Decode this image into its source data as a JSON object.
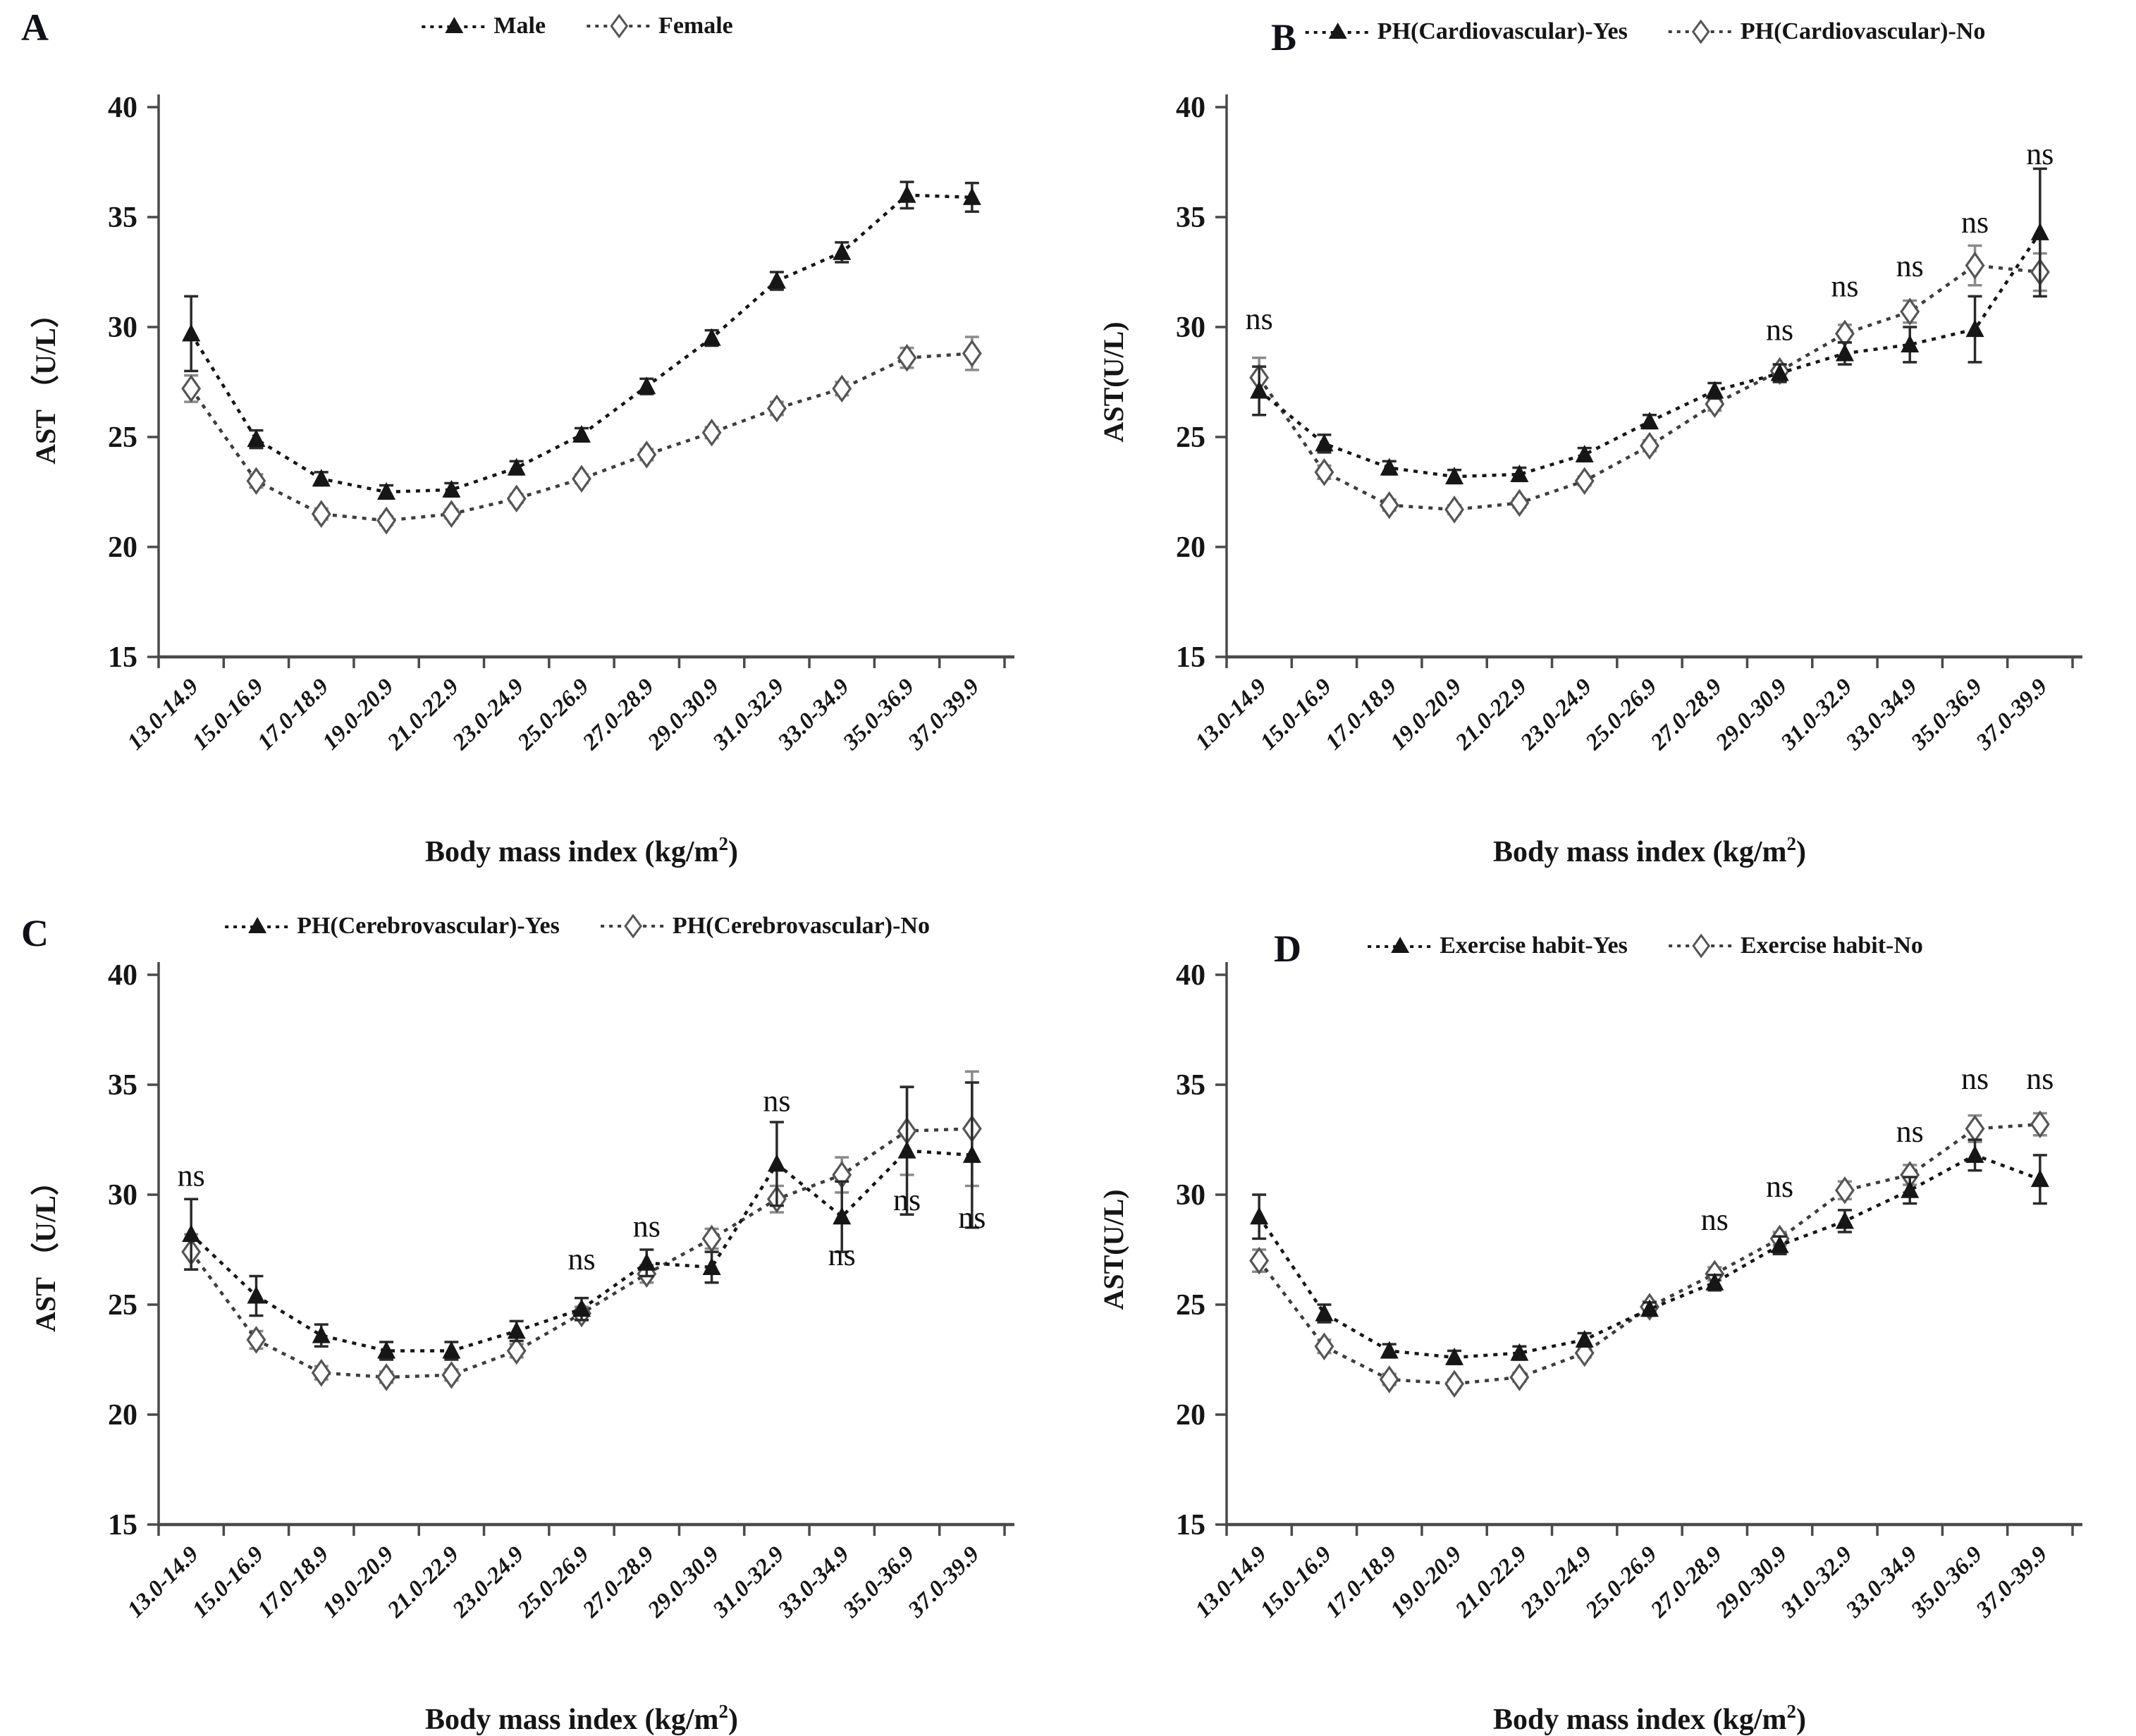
{
  "figure": {
    "background": "#ffffff",
    "text_color": "#111111",
    "accent_black": "#161616",
    "accent_gray": "#6e6e6e",
    "ns_label": "ns",
    "x_tick_labels": [
      "13.0-14.9",
      "15.0-16.9",
      "17.0-18.9",
      "19.0-20.9",
      "21.0-22.9",
      "23.0-24.9",
      "25.0-26.9",
      "27.0-28.9",
      "29.0-30.9",
      "31.0-32.9",
      "33.0-34.9",
      "35.0-36.9",
      "37.0-39.9"
    ],
    "x_axis_label": {
      "prefix": "Body mass index (kg/m",
      "sup": "2",
      "suffix": ")"
    },
    "y_tick_labels": [
      "15",
      "20",
      "25",
      "30",
      "35",
      "40"
    ]
  },
  "chart_data": [
    {
      "panel": "A",
      "type": "line",
      "ylabel": "AST （U/L）",
      "xlabel": "Body mass index (kg/m2)",
      "ylim": [
        15,
        40
      ],
      "yticks": [
        15,
        20,
        25,
        30,
        35,
        40
      ],
      "grid": false,
      "legend_position": "top-center",
      "categories": [
        "13.0-14.9",
        "15.0-16.9",
        "17.0-18.9",
        "19.0-20.9",
        "21.0-22.9",
        "23.0-24.9",
        "25.0-26.9",
        "27.0-28.9",
        "29.0-30.9",
        "31.0-32.9",
        "33.0-34.9",
        "35.0-36.9",
        "37.0-39.9"
      ],
      "series": [
        {
          "name": "Male",
          "marker": "filled-triangle",
          "color": "#161616",
          "values": [
            29.7,
            24.9,
            23.1,
            22.5,
            22.6,
            23.6,
            25.1,
            27.3,
            29.5,
            32.1,
            33.4,
            36.0,
            35.9
          ],
          "errors": [
            1.7,
            0.4,
            0.3,
            0.3,
            0.3,
            0.3,
            0.3,
            0.35,
            0.35,
            0.4,
            0.45,
            0.6,
            0.65
          ]
        },
        {
          "name": "Female",
          "marker": "open-diamond",
          "color": "#3d3d3d",
          "values": [
            27.2,
            23.0,
            21.5,
            21.2,
            21.5,
            22.2,
            23.1,
            24.2,
            25.2,
            26.3,
            27.2,
            28.6,
            28.8
          ],
          "errors": [
            0.6,
            0.3,
            0.25,
            0.2,
            0.2,
            0.2,
            0.2,
            0.25,
            0.25,
            0.3,
            0.3,
            0.45,
            0.75
          ]
        }
      ],
      "annotations": []
    },
    {
      "panel": "B",
      "type": "line",
      "ylabel": "AST(U/L)",
      "xlabel": "Body mass index (kg/m2)",
      "ylim": [
        15,
        40
      ],
      "yticks": [
        15,
        20,
        25,
        30,
        35,
        40
      ],
      "grid": false,
      "legend_position": "top-center",
      "categories": [
        "13.0-14.9",
        "15.0-16.9",
        "17.0-18.9",
        "19.0-20.9",
        "21.0-22.9",
        "23.0-24.9",
        "25.0-26.9",
        "27.0-28.9",
        "29.0-30.9",
        "31.0-32.9",
        "33.0-34.9",
        "35.0-36.9",
        "37.0-39.9"
      ],
      "series": [
        {
          "name": "PH(Cardiovascular)-Yes",
          "marker": "filled-triangle",
          "color": "#161616",
          "values": [
            27.1,
            24.7,
            23.6,
            23.2,
            23.3,
            24.2,
            25.7,
            27.1,
            27.9,
            28.8,
            29.2,
            29.9,
            34.3
          ],
          "errors": [
            1.1,
            0.4,
            0.3,
            0.3,
            0.3,
            0.3,
            0.3,
            0.35,
            0.4,
            0.5,
            0.8,
            1.5,
            2.9
          ]
        },
        {
          "name": "PH(Cardiovascular)-No",
          "marker": "open-diamond",
          "color": "#3d3d3d",
          "values": [
            27.7,
            23.4,
            21.9,
            21.7,
            22.0,
            23.0,
            24.6,
            26.5,
            28.0,
            29.7,
            30.7,
            32.8,
            32.5
          ],
          "errors": [
            0.9,
            0.3,
            0.25,
            0.2,
            0.2,
            0.2,
            0.25,
            0.3,
            0.3,
            0.4,
            0.5,
            0.9,
            0.85
          ]
        }
      ],
      "annotations": [
        {
          "category_index": 0,
          "text": "ns",
          "y": 29.9
        },
        {
          "category_index": 8,
          "text": "ns",
          "y": 29.4
        },
        {
          "category_index": 9,
          "text": "ns",
          "y": 31.4
        },
        {
          "category_index": 10,
          "text": "ns",
          "y": 32.3
        },
        {
          "category_index": 11,
          "text": "ns",
          "y": 34.3
        },
        {
          "category_index": 12,
          "text": "ns",
          "y": 37.4
        }
      ]
    },
    {
      "panel": "C",
      "type": "line",
      "ylabel": "AST （U/L）",
      "xlabel": "Body mass index (kg/m2)",
      "ylim": [
        15,
        40
      ],
      "yticks": [
        15,
        20,
        25,
        30,
        35,
        40
      ],
      "grid": false,
      "legend_position": "top-center",
      "categories": [
        "13.0-14.9",
        "15.0-16.9",
        "17.0-18.9",
        "19.0-20.9",
        "21.0-22.9",
        "23.0-24.9",
        "25.0-26.9",
        "27.0-28.9",
        "29.0-30.9",
        "31.0-32.9",
        "33.0-34.9",
        "35.0-36.9",
        "37.0-39.9"
      ],
      "series": [
        {
          "name": "PH(Cerebrovascular)-Yes",
          "marker": "filled-triangle",
          "color": "#161616",
          "values": [
            28.2,
            25.4,
            23.6,
            22.9,
            22.9,
            23.8,
            24.8,
            26.9,
            26.7,
            31.4,
            29.0,
            32.0,
            31.8
          ],
          "errors": [
            1.6,
            0.9,
            0.5,
            0.4,
            0.4,
            0.45,
            0.5,
            0.6,
            0.7,
            1.9,
            1.6,
            2.9,
            3.3
          ]
        },
        {
          "name": "PH(Cerebrovascular)-No",
          "marker": "open-diamond",
          "color": "#3d3d3d",
          "values": [
            27.4,
            23.4,
            21.9,
            21.7,
            21.8,
            22.9,
            24.6,
            26.4,
            28.0,
            29.8,
            30.9,
            32.9,
            33.0
          ],
          "errors": [
            0.8,
            0.4,
            0.3,
            0.25,
            0.25,
            0.3,
            0.3,
            0.4,
            0.45,
            0.6,
            0.8,
            2.0,
            2.6
          ]
        }
      ],
      "annotations": [
        {
          "category_index": 0,
          "text": "ns",
          "y": 30.4
        },
        {
          "category_index": 6,
          "text": "ns",
          "y": 26.6
        },
        {
          "category_index": 7,
          "text": "ns",
          "y": 28.1
        },
        {
          "category_index": 9,
          "text": "ns",
          "y": 33.8
        },
        {
          "category_index": 10,
          "text": "ns",
          "y": 26.8
        },
        {
          "category_index": 11,
          "text": "ns",
          "y": 29.3
        },
        {
          "category_index": 12,
          "text": "ns",
          "y": 28.5
        }
      ]
    },
    {
      "panel": "D",
      "type": "line",
      "ylabel": "AST(U/L)",
      "xlabel": "Body mass index (kg/m2)",
      "ylim": [
        15,
        40
      ],
      "yticks": [
        15,
        20,
        25,
        30,
        35,
        40
      ],
      "grid": false,
      "legend_position": "top-center",
      "categories": [
        "13.0-14.9",
        "15.0-16.9",
        "17.0-18.9",
        "19.0-20.9",
        "21.0-22.9",
        "23.0-24.9",
        "25.0-26.9",
        "27.0-28.9",
        "29.0-30.9",
        "31.0-32.9",
        "33.0-34.9",
        "35.0-36.9",
        "37.0-39.9"
      ],
      "series": [
        {
          "name": "Exercise habit-Yes",
          "marker": "filled-triangle",
          "color": "#161616",
          "values": [
            29.0,
            24.6,
            22.9,
            22.6,
            22.8,
            23.4,
            24.8,
            26.0,
            27.7,
            28.8,
            30.2,
            31.8,
            30.7
          ],
          "errors": [
            1.0,
            0.4,
            0.3,
            0.3,
            0.3,
            0.3,
            0.3,
            0.35,
            0.4,
            0.5,
            0.6,
            0.7,
            1.1
          ]
        },
        {
          "name": "Exercise habit-No",
          "marker": "open-diamond",
          "color": "#3d3d3d",
          "values": [
            27.0,
            23.1,
            21.6,
            21.4,
            21.7,
            22.8,
            24.9,
            26.4,
            28.0,
            30.2,
            30.9,
            33.0,
            33.2
          ],
          "errors": [
            0.5,
            0.3,
            0.25,
            0.2,
            0.2,
            0.2,
            0.25,
            0.3,
            0.3,
            0.4,
            0.45,
            0.6,
            0.5
          ]
        }
      ],
      "annotations": [
        {
          "category_index": 7,
          "text": "ns",
          "y": 28.4
        },
        {
          "category_index": 8,
          "text": "ns",
          "y": 29.9
        },
        {
          "category_index": 10,
          "text": "ns",
          "y": 32.4
        },
        {
          "category_index": 11,
          "text": "ns",
          "y": 34.8
        },
        {
          "category_index": 12,
          "text": "ns",
          "y": 34.8
        }
      ]
    }
  ]
}
